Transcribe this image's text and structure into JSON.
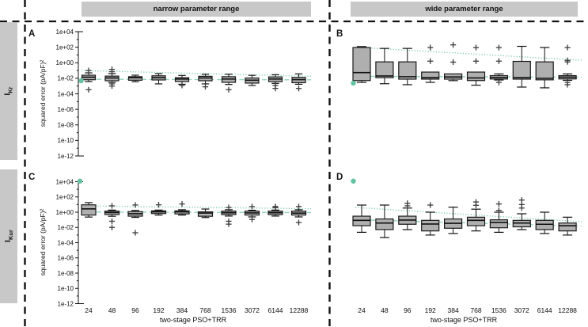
{
  "headers": {
    "narrow": "narrow parameter range",
    "wide": "wide parameter range"
  },
  "row_labels": [
    {
      "prefix": "I",
      "sub": "Kr"
    },
    {
      "prefix": "I",
      "sub": "Kur"
    }
  ],
  "colors": {
    "accent_teal": "#66c2a5",
    "band_gray": "#c8c8c8",
    "box_fill": "#afafaf",
    "box_edge": "#1a1a1a",
    "outlier": "#3c3c3c",
    "frame": "#111111"
  },
  "chart_data": [
    {
      "id": "A",
      "type": "boxplot",
      "row": "IKr",
      "column": "narrow parameter range",
      "yscale": "log",
      "ylim": [
        1e-12,
        10000.0
      ],
      "ylabel": "squared error (pA/pF)²",
      "yticks": [
        "1e+04",
        "1e+02",
        "1e+00",
        "1e-02",
        "1e-04",
        "1e-06",
        "1e-08",
        "1e-10",
        "1e-12"
      ],
      "categories": [
        "24",
        "48",
        "96",
        "192",
        "384",
        "768",
        "1536",
        "3072",
        "6144",
        "12288"
      ],
      "xlabel": "",
      "show_x_labels": false,
      "boxes": [
        {
          "whisker_low": 0.0038,
          "q1": 0.0065,
          "median": 0.014,
          "q3": 0.025,
          "whisker_high": 0.05,
          "outliers": [
            0.1,
            0.00034
          ]
        },
        {
          "whisker_low": 0.0029,
          "q1": 0.0048,
          "median": 0.011,
          "q3": 0.019,
          "whisker_high": 0.04,
          "outliers": [
            0.14,
            0.07,
            0.0019,
            0.001
          ]
        },
        {
          "whisker_low": 0.0036,
          "q1": 0.0056,
          "median": 0.012,
          "q3": 0.016,
          "whisker_high": 0.025,
          "outliers": []
        },
        {
          "whisker_low": 0.0019,
          "q1": 0.0061,
          "median": 0.012,
          "q3": 0.021,
          "whisker_high": 0.04,
          "outliers": []
        },
        {
          "whisker_low": 0.0017,
          "q1": 0.0038,
          "median": 0.008,
          "q3": 0.012,
          "whisker_high": 0.023,
          "outliers": [
            0.0012
          ]
        },
        {
          "whisker_low": 0.0019,
          "q1": 0.0048,
          "median": 0.011,
          "q3": 0.018,
          "whisker_high": 0.033,
          "outliers": [
            0.0008
          ]
        },
        {
          "whisker_low": 0.0016,
          "q1": 0.003,
          "median": 0.008,
          "q3": 0.016,
          "whisker_high": 0.034,
          "outliers": [
            0.00034
          ]
        },
        {
          "whisker_low": 0.0012,
          "q1": 0.0024,
          "median": 0.0056,
          "q3": 0.011,
          "whisker_high": 0.024,
          "outliers": []
        },
        {
          "whisker_low": 0.0022,
          "q1": 0.0037,
          "median": 0.008,
          "q3": 0.015,
          "whisker_high": 0.029,
          "outliers": [
            0.0012,
            0.0005
          ]
        },
        {
          "whisker_low": 0.0017,
          "q1": 0.0027,
          "median": 0.0067,
          "q3": 0.013,
          "whisker_high": 0.037,
          "outliers": [
            0.00049
          ]
        }
      ],
      "trend_dotted": {
        "start": 0.1,
        "end": 0.018
      },
      "trend_dashed": {
        "start": 0.0075,
        "end": 0.0063
      },
      "reference_dot": 0.0048
    },
    {
      "id": "B",
      "type": "boxplot",
      "row": "IKr",
      "column": "wide parameter range",
      "yscale": "log",
      "ylim": [
        1e-12,
        10000.0
      ],
      "ylabel": "",
      "yticks": [],
      "categories": [
        "24",
        "48",
        "96",
        "192",
        "384",
        "768",
        "1536",
        "3072",
        "6144",
        "12288"
      ],
      "xlabel": "",
      "show_x_labels": false,
      "boxes": [
        {
          "whisker_low": 0.003,
          "q1": 0.0051,
          "median": 0.054,
          "q3": 92.0,
          "whisker_high": 120.0,
          "outliers": []
        },
        {
          "whisker_low": 0.002,
          "q1": 0.012,
          "median": 0.02,
          "q3": 1.3,
          "whisker_high": 70.0,
          "outliers": []
        },
        {
          "whisker_low": 0.0015,
          "q1": 0.0077,
          "median": 0.016,
          "q3": 1.3,
          "whisker_high": 70.0,
          "outliers": []
        },
        {
          "whisker_low": 0.003,
          "q1": 0.0077,
          "median": 0.012,
          "q3": 0.063,
          "whisker_high": 0.063,
          "outliers": [
            90.0,
            1.6
          ]
        },
        {
          "whisker_low": 0.005,
          "q1": 0.0077,
          "median": 0.015,
          "q3": 0.037,
          "whisker_high": 0.037,
          "outliers": [
            200.0,
            1.2
          ]
        },
        {
          "whisker_low": 0.0013,
          "q1": 0.0051,
          "median": 0.011,
          "q3": 0.063,
          "whisker_high": 0.063,
          "outliers": [
            90.0,
            1.6
          ]
        },
        {
          "whisker_low": 0.006,
          "q1": 0.008,
          "median": 0.013,
          "q3": 0.022,
          "whisker_high": 0.037,
          "outliers": [
            90.0,
            1.6,
            0.003
          ]
        },
        {
          "whisker_low": 0.00074,
          "q1": 0.0077,
          "median": 0.012,
          "q3": 1.5,
          "whisker_high": 130.0,
          "outliers": []
        },
        {
          "whisker_low": 0.00059,
          "q1": 0.0063,
          "median": 0.01,
          "q3": 1.3,
          "whisker_high": 92.0,
          "outliers": []
        },
        {
          "whisker_low": 0.0055,
          "q1": 0.0082,
          "median": 0.014,
          "q3": 0.022,
          "whisker_high": 0.037,
          "outliers": [
            90.0,
            2.0,
            1.3,
            0.0029,
            0.0015
          ]
        }
      ],
      "trend_dotted": {
        "start": 100.0,
        "end": 2.1
      },
      "trend_dashed": {
        "start": 0.018,
        "end": 0.014
      },
      "reference_dot": 0.0024
    },
    {
      "id": "C",
      "type": "boxplot",
      "row": "IKur",
      "column": "narrow parameter range",
      "yscale": "log",
      "ylim": [
        1e-12,
        10000.0
      ],
      "ylabel": "squared error (pA/pF)²",
      "yticks": [
        "1e+04",
        "1e+02",
        "1e+00",
        "1e-02",
        "1e-04",
        "1e-06",
        "1e-08",
        "1e-10",
        "1e-12"
      ],
      "categories": [
        "24",
        "48",
        "96",
        "192",
        "384",
        "768",
        "1536",
        "3072",
        "6144",
        "12288"
      ],
      "xlabel": "two-stage PSO+TRR",
      "show_x_labels": true,
      "boxes": [
        {
          "whisker_low": 0.23,
          "q1": 0.42,
          "median": 2.7,
          "q3": 9.3,
          "whisker_high": 18.0,
          "outliers": []
        },
        {
          "whisker_low": 0.29,
          "q1": 0.49,
          "median": 0.9,
          "q3": 1.4,
          "whisker_high": 1.9,
          "outliers": [
            6.8,
            0.065,
            0.01
          ]
        },
        {
          "whisker_low": 0.21,
          "q1": 0.3,
          "median": 0.63,
          "q3": 1.2,
          "whisker_high": 1.7,
          "outliers": [
            8.8,
            0.002
          ]
        },
        {
          "whisker_low": 0.42,
          "q1": 0.66,
          "median": 1.1,
          "q3": 1.5,
          "whisker_high": 1.9,
          "outliers": [
            9.3
          ]
        },
        {
          "whisker_low": 0.42,
          "q1": 0.6,
          "median": 1.1,
          "q3": 1.5,
          "whisker_high": 2.1,
          "outliers": [
            12.0
          ]
        },
        {
          "whisker_low": 0.2,
          "q1": 0.29,
          "median": 0.78,
          "q3": 1.1,
          "whisker_high": 2.6,
          "outliers": []
        },
        {
          "whisker_low": 0.31,
          "q1": 0.49,
          "median": 0.85,
          "q3": 1.4,
          "whisker_high": 2.1,
          "outliers": [
            4.2,
            0.065,
            0.027
          ]
        },
        {
          "whisker_low": 0.24,
          "q1": 0.42,
          "median": 0.8,
          "q3": 1.4,
          "whisker_high": 1.8,
          "outliers": [
            5.5,
            0.11
          ]
        },
        {
          "whisker_low": 0.31,
          "q1": 0.49,
          "median": 0.85,
          "q3": 1.4,
          "whisker_high": 1.9,
          "outliers": [
            5.5,
            4.0
          ]
        },
        {
          "whisker_low": 0.24,
          "q1": 0.42,
          "median": 0.75,
          "q3": 1.4,
          "whisker_high": 2.1,
          "outliers": [
            5.5,
            0.044
          ]
        }
      ],
      "trend_dotted": {
        "start": 6.8,
        "end": 2.8
      },
      "trend_dashed": {
        "start": 1.05,
        "end": 0.9
      },
      "reference_dot": 12000.0
    },
    {
      "id": "D",
      "type": "boxplot",
      "row": "IKur",
      "column": "wide parameter range",
      "yscale": "log",
      "ylim": [
        1e-12,
        10000.0
      ],
      "ylabel": "",
      "yticks": [],
      "categories": [
        "24",
        "48",
        "96",
        "192",
        "384",
        "768",
        "1536",
        "3072",
        "6144",
        "12288"
      ],
      "xlabel": "two-stage PSO+TRR",
      "show_x_labels": true,
      "boxes": [
        {
          "whisker_low": 0.0023,
          "q1": 0.017,
          "median": 0.085,
          "q3": 0.3,
          "whisker_high": 8.6,
          "outliers": []
        },
        {
          "whisker_low": 0.00048,
          "q1": 0.0052,
          "median": 0.038,
          "q3": 0.13,
          "whisker_high": 8.6,
          "outliers": []
        },
        {
          "whisker_low": 0.0052,
          "q1": 0.026,
          "median": 0.092,
          "q3": 0.3,
          "whisker_high": 3.5,
          "outliers": [
            15.0,
            6.8
          ]
        },
        {
          "whisker_low": 0.001,
          "q1": 0.0035,
          "median": 0.028,
          "q3": 0.085,
          "whisker_high": 1.0,
          "outliers": [
            8.6
          ]
        },
        {
          "whisker_low": 0.0016,
          "q1": 0.0078,
          "median": 0.035,
          "q3": 0.13,
          "whisker_high": 4.6,
          "outliers": []
        },
        {
          "whisker_low": 0.0035,
          "q1": 0.017,
          "median": 0.085,
          "q3": 0.22,
          "whisker_high": 2.5,
          "outliers": [
            22.0,
            8.0
          ]
        },
        {
          "whisker_low": 0.0023,
          "q1": 0.009,
          "median": 0.045,
          "q3": 0.1,
          "whisker_high": 1.0,
          "outliers": [
            12.0,
            1.7
          ]
        },
        {
          "whisker_low": 0.0052,
          "q1": 0.012,
          "median": 0.038,
          "q3": 0.085,
          "whisker_high": 0.62,
          "outliers": [
            39.0,
            10.0,
            3.5
          ]
        },
        {
          "whisker_low": 0.0016,
          "q1": 0.0052,
          "median": 0.026,
          "q3": 0.085,
          "whisker_high": 1.0,
          "outliers": []
        },
        {
          "whisker_low": 0.001,
          "q1": 0.0035,
          "median": 0.017,
          "q3": 0.038,
          "whisker_high": 0.22,
          "outliers": []
        }
      ],
      "trend_dotted": {
        "start": 4.2,
        "end": 0.056
      },
      "trend_dashed": {
        "start": 0.105,
        "end": 0.015
      },
      "reference_dot": 12000.0
    }
  ]
}
